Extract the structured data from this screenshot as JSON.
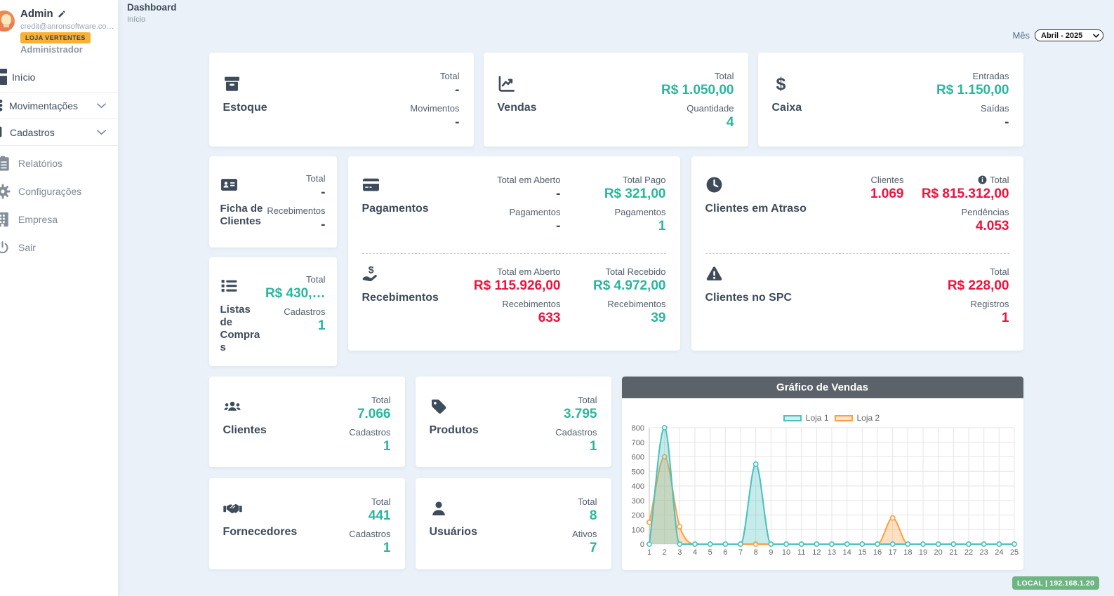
{
  "sidebar": {
    "profile": {
      "name": "Admin",
      "email": "credit@anronsoftware.co…",
      "badge": "LOJA VERTENTES",
      "role": "Administrador"
    },
    "menu": {
      "inicio": "Início",
      "movimentacoes": "Movimentações",
      "cadastros": "Cadastros",
      "relatorios": "Relatórios",
      "configuracoes": "Configurações",
      "empresa": "Empresa",
      "sair": "Sair"
    }
  },
  "header": {
    "title": "Dashboard",
    "breadcrumb": "Início",
    "month_label": "Mês",
    "month_value": "Abril - 2025"
  },
  "cards": {
    "estoque": {
      "title": "Estoque",
      "stats": [
        {
          "label": "Total",
          "value": "-",
          "tone": "dark"
        },
        {
          "label": "Movimentos",
          "value": "-",
          "tone": "dark"
        }
      ]
    },
    "vendas": {
      "title": "Vendas",
      "stats": [
        {
          "label": "Total",
          "value": "R$ 1.050,00",
          "tone": "teal"
        },
        {
          "label": "Quantidade",
          "value": "4",
          "tone": "teal"
        }
      ]
    },
    "caixa": {
      "title": "Caixa",
      "stats": [
        {
          "label": "Entradas",
          "value": "R$ 1.150,00",
          "tone": "teal"
        },
        {
          "label": "Saídas",
          "value": "-",
          "tone": "dark"
        }
      ]
    },
    "ficha": {
      "title": "Ficha de Clientes",
      "stats": [
        {
          "label": "Total",
          "value": "-",
          "tone": "dark"
        },
        {
          "label": "Recebimentos",
          "value": "-",
          "tone": "dark"
        }
      ]
    },
    "listas": {
      "title": "Listas de Compras",
      "stats": [
        {
          "label": "Total",
          "value": "R$ 430,…",
          "tone": "teal"
        },
        {
          "label": "Cadastros",
          "value": "1",
          "tone": "teal"
        }
      ]
    },
    "pagamentos": {
      "title": "Pagamentos",
      "col1": [
        {
          "label": "Total em Aberto",
          "value": "-",
          "tone": "dark"
        },
        {
          "label": "Pagamentos",
          "value": "-",
          "tone": "dark"
        }
      ],
      "col2": [
        {
          "label": "Total Pago",
          "value": "R$ 321,00",
          "tone": "teal"
        },
        {
          "label": "Pagamentos",
          "value": "1",
          "tone": "teal"
        }
      ]
    },
    "recebimentos": {
      "title": "Recebimentos",
      "col1": [
        {
          "label": "Total em Aberto",
          "value": "R$ 115.926,00",
          "tone": "red"
        },
        {
          "label": "Recebimentos",
          "value": "633",
          "tone": "red"
        }
      ],
      "col2": [
        {
          "label": "Total Recebido",
          "value": "R$ 4.972,00",
          "tone": "teal"
        },
        {
          "label": "Recebimentos",
          "value": "39",
          "tone": "teal"
        }
      ]
    },
    "atraso": {
      "title": "Clientes em Atraso",
      "col1": [
        {
          "label": "Clientes",
          "value": "1.069",
          "tone": "red"
        }
      ],
      "col2": [
        {
          "label": "Total",
          "value": "R$ 815.312,00",
          "tone": "red",
          "info_icon": true
        },
        {
          "label": "Pendências",
          "value": "4.053",
          "tone": "red"
        }
      ]
    },
    "spc": {
      "title": "Clientes no SPC",
      "stats": [
        {
          "label": "Total",
          "value": "R$ 228,00",
          "tone": "red"
        },
        {
          "label": "Registros",
          "value": "1",
          "tone": "red"
        }
      ]
    },
    "clientes": {
      "title": "Clientes",
      "stats": [
        {
          "label": "Total",
          "value": "7.066",
          "tone": "teal"
        },
        {
          "label": "Cadastros",
          "value": "1",
          "tone": "teal"
        }
      ]
    },
    "produtos": {
      "title": "Produtos",
      "stats": [
        {
          "label": "Total",
          "value": "3.795",
          "tone": "teal"
        },
        {
          "label": "Cadastros",
          "value": "1",
          "tone": "teal"
        }
      ]
    },
    "fornecedores": {
      "title": "Fornecedores",
      "stats": [
        {
          "label": "Total",
          "value": "441",
          "tone": "teal"
        },
        {
          "label": "Cadastros",
          "value": "1",
          "tone": "teal"
        }
      ]
    },
    "usuarios": {
      "title": "Usuários",
      "stats": [
        {
          "label": "Total",
          "value": "8",
          "tone": "teal"
        },
        {
          "label": "Ativos",
          "value": "7",
          "tone": "teal"
        }
      ]
    }
  },
  "chart_data": {
    "type": "line",
    "title": "Gráfico de Vendas",
    "x": [
      1,
      2,
      3,
      4,
      5,
      6,
      7,
      8,
      9,
      10,
      11,
      12,
      13,
      14,
      15,
      16,
      17,
      18,
      19,
      20,
      21,
      22,
      23,
      24,
      25
    ],
    "series": [
      {
        "name": "Loja 1",
        "color": "#4bc0c0",
        "fill": "rgba(75,192,192,0.32)",
        "values": [
          0,
          800,
          0,
          0,
          0,
          0,
          0,
          550,
          0,
          0,
          0,
          0,
          0,
          0,
          0,
          0,
          0,
          0,
          0,
          0,
          0,
          0,
          0,
          0,
          0
        ]
      },
      {
        "name": "Loja 2",
        "color": "#ff9f40",
        "fill": "rgba(255,159,64,0.32)",
        "values": [
          150,
          600,
          120,
          0,
          0,
          0,
          0,
          0,
          0,
          0,
          0,
          0,
          0,
          0,
          0,
          0,
          180,
          0,
          0,
          0,
          0,
          0,
          0,
          0,
          0
        ]
      }
    ],
    "ylim": [
      0,
      800
    ],
    "ytick": 100,
    "xlabel": "",
    "ylabel": "",
    "legend_position": "top",
    "grid": true,
    "curve": "monotone"
  },
  "footer": {
    "env_badge": "LOCAL | 192.168.1.20"
  }
}
